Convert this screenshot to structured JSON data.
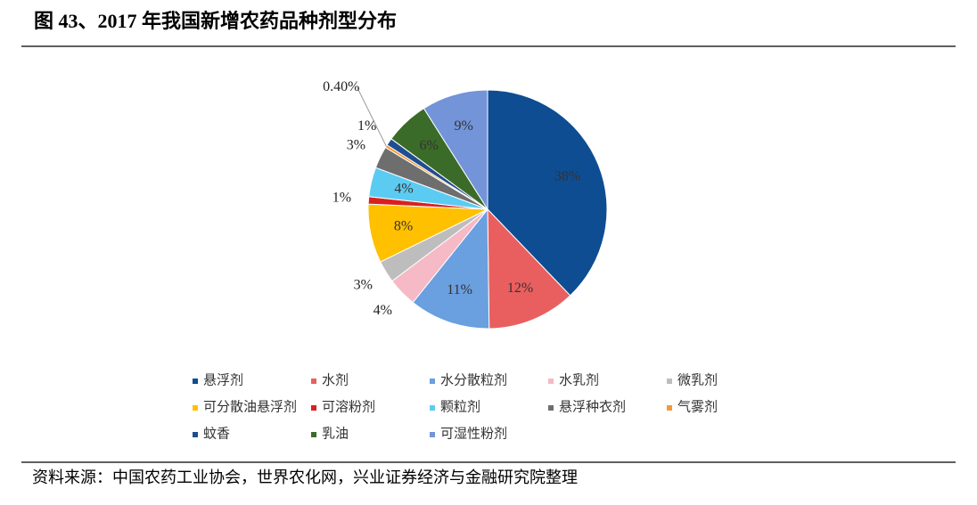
{
  "chart_data": {
    "type": "pie",
    "title": "图 43、2017 年我国新增农药品种剂型分布",
    "categories": [
      "悬浮剂",
      "水剂",
      "水分散粒剂",
      "水乳剂",
      "微乳剂",
      "可分散油悬浮剂",
      "可溶粉剂",
      "颗粒剂",
      "悬浮种衣剂",
      "气雾剂",
      "蚊香",
      "乳油",
      "可湿性粉剂"
    ],
    "values": [
      38,
      12,
      11,
      4,
      3,
      8,
      1,
      4,
      3,
      0.4,
      1,
      6,
      9
    ],
    "value_labels": [
      "38%",
      "12%",
      "11%",
      "4%",
      "3%",
      "8%",
      "1%",
      "4%",
      "3%",
      "0.40%",
      "1%",
      "6%",
      "9%"
    ],
    "colors": [
      "#0e4d92",
      "#e95f5f",
      "#6a9fe0",
      "#f6b9c6",
      "#bdbdbd",
      "#ffc000",
      "#d9201f",
      "#5ccbf2",
      "#6e6e6e",
      "#f39a3a",
      "#1f4e90",
      "#3b6b28",
      "#7394d8"
    ],
    "legend": "bottom",
    "source": "资料来源：中国农药工业协会，世界农化网，兴业证券经济与金融研究院整理"
  }
}
